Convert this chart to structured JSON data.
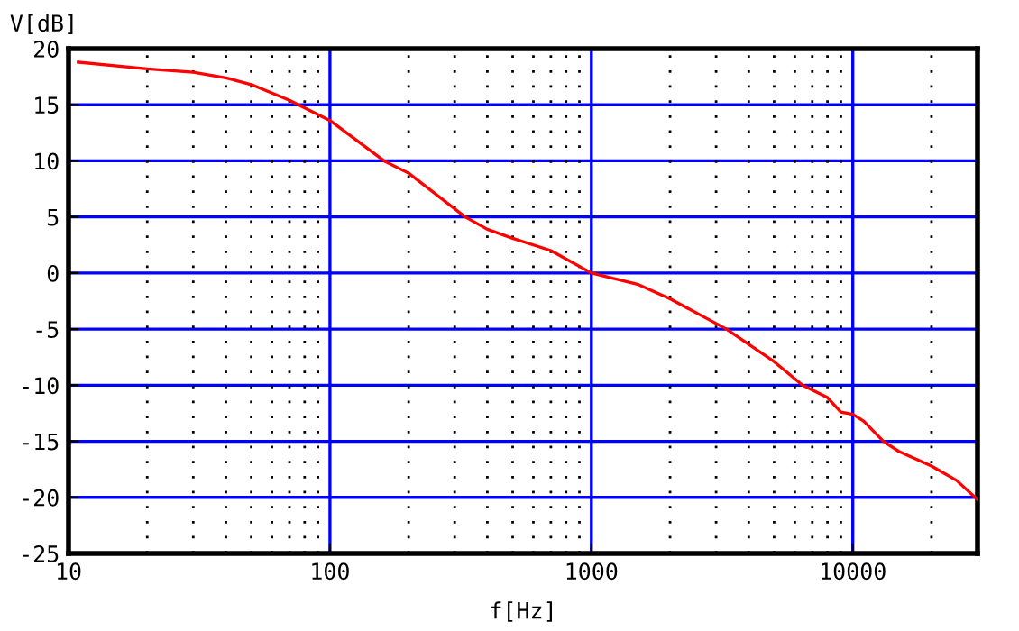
{
  "chart_data": {
    "type": "line",
    "xlabel": "f[Hz]",
    "ylabel": "V[dB]",
    "log": "x",
    "grid": true,
    "xlim": [
      10,
      30000
    ],
    "xticks": [
      10,
      100,
      1000,
      10000
    ],
    "ylim": [
      -25,
      20
    ],
    "yticks": [
      -25,
      -20,
      -15,
      -10,
      -5,
      0,
      5,
      10,
      15,
      20
    ],
    "series": [
      {
        "color": "#ff0000",
        "x": [
          10.9,
          20,
          30,
          40,
          50,
          70,
          100,
          161,
          200,
          329,
          400,
          500,
          700,
          1000,
          1500,
          2000,
          3000,
          3287,
          5000,
          6420,
          8000,
          9000,
          10000,
          11000,
          13100,
          15000,
          20000,
          25000,
          30000
        ],
        "values": [
          18.8,
          18.2,
          17.9,
          17.4,
          16.8,
          15.4,
          13.6,
          10,
          8.9,
          5,
          3.9,
          3.1,
          2.0,
          0,
          -1.0,
          -2.3,
          -4.5,
          -5,
          -7.9,
          -10,
          -11.1,
          -12.4,
          -12.6,
          -13.2,
          -15,
          -15.9,
          -17.2,
          -18.5,
          -20.2
        ]
      }
    ]
  }
}
